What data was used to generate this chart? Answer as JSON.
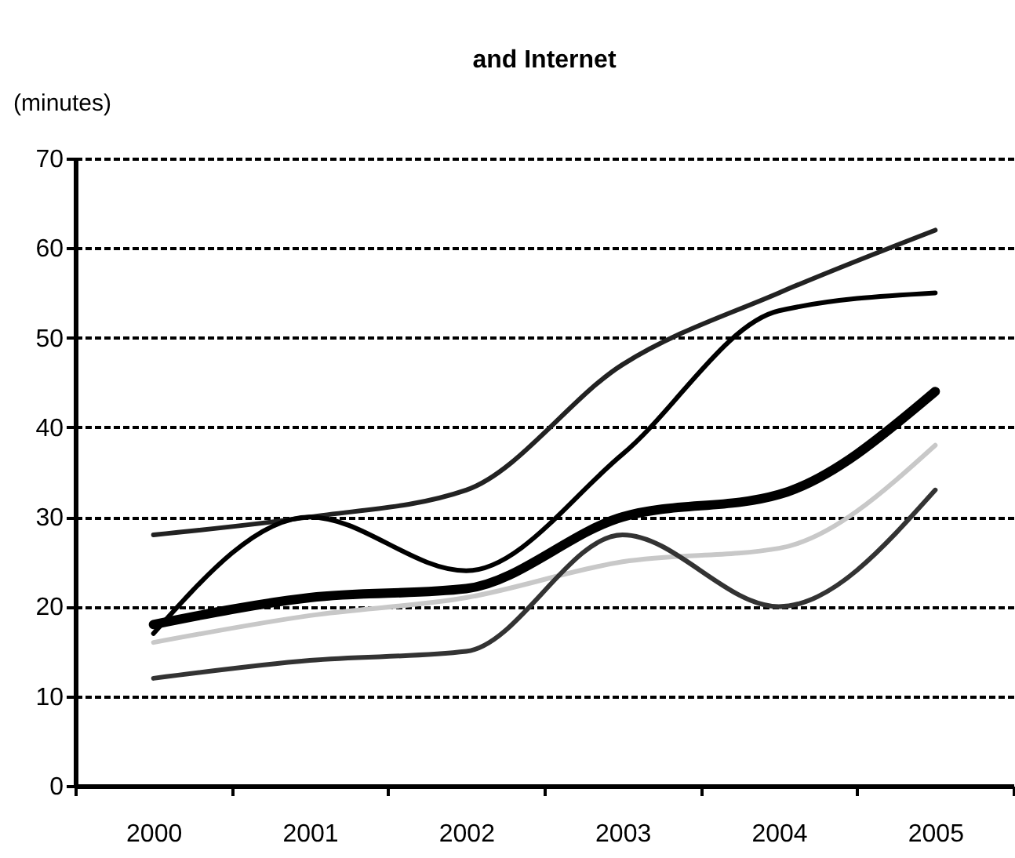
{
  "chart_data": {
    "type": "line",
    "title": "and Internet",
    "ylabel": "(minutes)",
    "categories": [
      "2000",
      "2001",
      "2002",
      "2003",
      "2004",
      "2005"
    ],
    "series": [
      {
        "color": "#222222",
        "values": [
          28,
          30,
          33,
          47,
          55,
          62
        ]
      },
      {
        "color": "#000000",
        "values": [
          17,
          30,
          24,
          37,
          53,
          55
        ]
      },
      {
        "color": "#000000",
        "values": [
          18,
          21,
          22,
          30,
          32.5,
          44
        ]
      },
      {
        "color": "#c8c8c8",
        "values": [
          16,
          19,
          21,
          25,
          26.5,
          38
        ]
      },
      {
        "color": "#333333",
        "values": [
          12,
          14,
          15,
          28,
          20,
          33
        ]
      }
    ],
    "ylim": [
      0,
      70
    ],
    "yticks": [
      0,
      10,
      20,
      30,
      40,
      50,
      60,
      70
    ],
    "grid": "y",
    "marker": "none",
    "line_style": "solid"
  }
}
